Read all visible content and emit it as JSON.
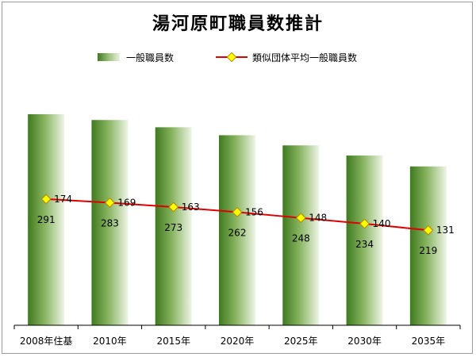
{
  "chart_data": {
    "type": "bar",
    "title": "湯河原町職員数推計",
    "categories": [
      "2008年住基",
      "2010年",
      "2015年",
      "2020年",
      "2025年",
      "2030年",
      "2035年"
    ],
    "series": [
      {
        "name": "一般職員数",
        "type": "bar",
        "values": [
          291,
          283,
          273,
          262,
          248,
          234,
          219
        ]
      },
      {
        "name": "類似団体平均一般職員数",
        "type": "line",
        "values": [
          174,
          169,
          163,
          156,
          148,
          140,
          131
        ]
      }
    ],
    "ylim": [
      0,
      350
    ],
    "grid": false,
    "legend": "top",
    "colors": {
      "bar_dark": "#3f7a1f",
      "bar_light": "#eef5e6",
      "line": "#e00000",
      "marker": "#ffff00",
      "marker_edge": "#b8860b"
    }
  }
}
